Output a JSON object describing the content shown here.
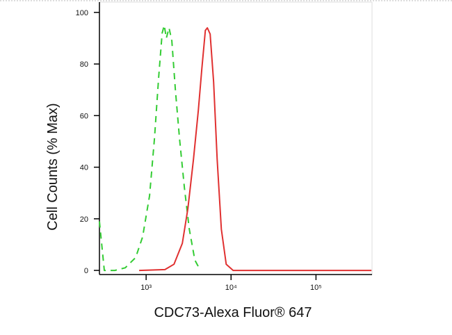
{
  "chart_data": {
    "type": "line",
    "y_label": "Cell Counts (% Max)",
    "x_label": "CDC73-Alexa Fluor® 647",
    "log_x": true,
    "xlim": [
      282,
      457000
    ],
    "xticks": [
      {
        "value": 1000,
        "label": "10³"
      },
      {
        "value": 10000,
        "label": "10⁴"
      },
      {
        "value": 100000,
        "label": "10⁵"
      }
    ],
    "ylim": [
      -1.6,
      104
    ],
    "yticks": [
      0,
      20,
      40,
      60,
      80,
      100
    ],
    "series": [
      {
        "color": "#33cc33",
        "dashed": true,
        "x": [
          282,
          322,
          428,
          568,
          753,
          910,
          1099,
          1254,
          1405,
          1544,
          1633,
          1729,
          1863,
          2009,
          2208,
          2473,
          2823,
          3221,
          3749,
          4356
        ],
        "values": [
          19,
          0,
          0,
          1,
          5,
          13,
          29,
          51,
          75,
          92,
          95,
          90,
          94,
          89,
          70,
          51,
          32,
          16,
          4,
          0
        ]
      },
      {
        "color": "#e03030",
        "dashed": false,
        "x": [
          828,
          1665,
          2128,
          2668,
          3103,
          3608,
          4120,
          4528,
          4977,
          5260,
          5675,
          6237,
          6860,
          7680,
          8760,
          10590,
          450000
        ],
        "values": [
          0,
          0.3,
          2.4,
          10.5,
          24,
          43,
          62,
          78,
          93,
          94,
          91.6,
          73,
          43,
          16,
          2.4,
          0,
          0
        ]
      }
    ]
  }
}
